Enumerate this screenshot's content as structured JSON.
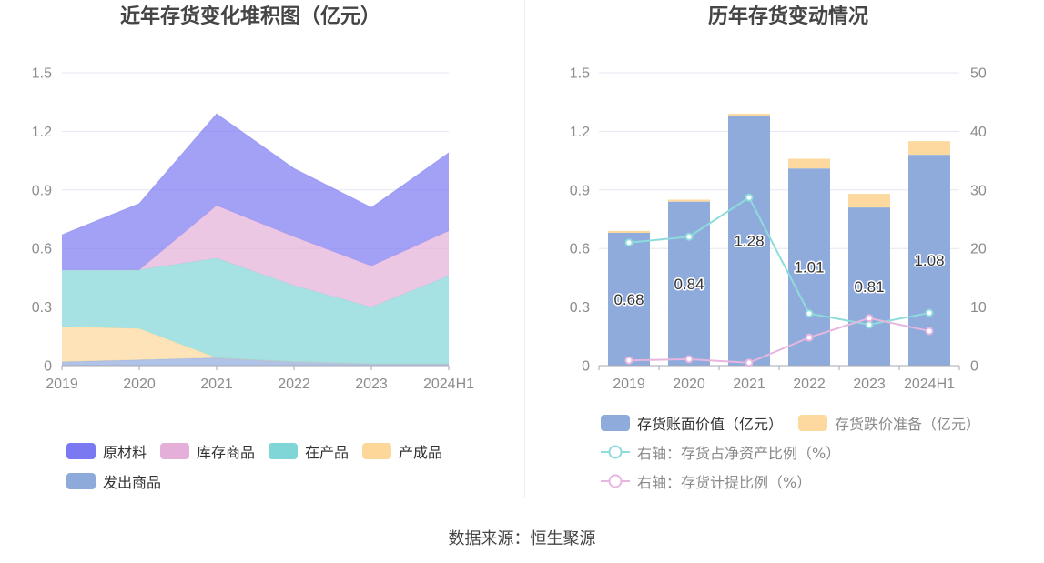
{
  "footer": {
    "source": "数据来源：恒生聚源"
  },
  "chart_data": [
    {
      "type": "area",
      "stacked": true,
      "title": "近年存货变化堆积图（亿元）",
      "categories": [
        "2019",
        "2020",
        "2021",
        "2022",
        "2023",
        "2024H1"
      ],
      "ylim": [
        0,
        1.5
      ],
      "y_ticks": [
        "0",
        "0.3",
        "0.6",
        "0.9",
        "1.2",
        "1.5"
      ],
      "grid": true,
      "legend_position": "bottom-left",
      "series": [
        {
          "name": "原材料",
          "color": "#7b79f2",
          "values": [
            0.18,
            0.34,
            0.47,
            0.35,
            0.3,
            0.4
          ]
        },
        {
          "name": "库存商品",
          "color": "#e4afd8",
          "values": [
            0.0,
            0.0,
            0.27,
            0.25,
            0.21,
            0.23
          ]
        },
        {
          "name": "在产品",
          "color": "#80d6d7",
          "values": [
            0.29,
            0.3,
            0.51,
            0.39,
            0.29,
            0.45
          ]
        },
        {
          "name": "产成品",
          "color": "#fdd79a",
          "values": [
            0.18,
            0.16,
            0.0,
            0.0,
            0.0,
            0.0
          ]
        },
        {
          "name": "发出商品",
          "color": "#8eaadb",
          "values": [
            0.02,
            0.03,
            0.04,
            0.02,
            0.01,
            0.01
          ]
        }
      ]
    },
    {
      "type": "bar",
      "stacked": true,
      "title": "历年存货变动情况",
      "categories": [
        "2019",
        "2020",
        "2021",
        "2022",
        "2023",
        "2024H1"
      ],
      "ylim": [
        0,
        1.5
      ],
      "y_ticks": [
        "0",
        "0.3",
        "0.6",
        "0.9",
        "1.2",
        "1.5"
      ],
      "y2lim": [
        0,
        50
      ],
      "y2_ticks": [
        "0",
        "10",
        "20",
        "30",
        "40",
        "50"
      ],
      "grid": true,
      "legend_position": "bottom-left",
      "series": [
        {
          "name": "存货账面价值（亿元）",
          "type": "bar",
          "axis": "left",
          "color": "#8eabdc",
          "values": [
            0.68,
            0.84,
            1.28,
            1.01,
            0.81,
            1.08
          ]
        },
        {
          "name": "存货跌价准备（亿元）",
          "type": "bar",
          "axis": "left",
          "color": "#fdd99f",
          "values": [
            0.01,
            0.01,
            0.01,
            0.05,
            0.07,
            0.07
          ]
        },
        {
          "name": "右轴：存货占净资产比例（%）",
          "type": "line",
          "axis": "right",
          "color": "#8edbdc",
          "values": [
            21.0,
            22.0,
            28.7,
            8.9,
            7.0,
            9.0
          ]
        },
        {
          "name": "右轴：存货计提比例（%）",
          "type": "line",
          "axis": "right",
          "color": "#e7b6df",
          "values": [
            0.9,
            1.1,
            0.5,
            4.8,
            8.1,
            5.9
          ]
        }
      ]
    }
  ]
}
